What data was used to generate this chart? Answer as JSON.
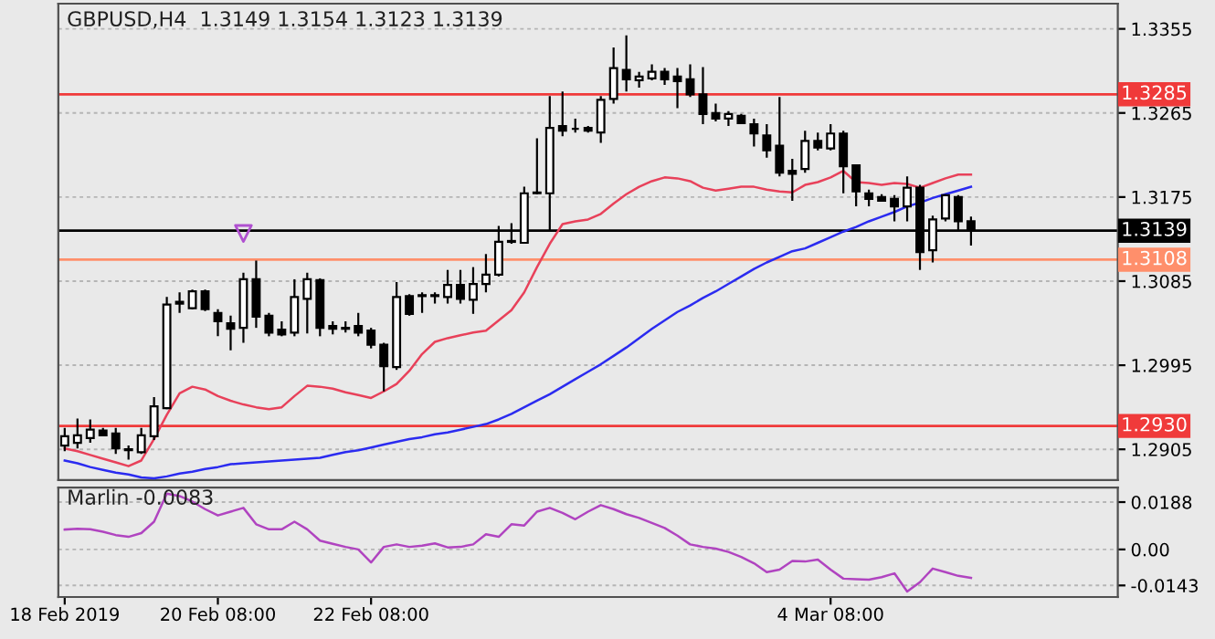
{
  "chart_data": [
    {
      "type": "candlestick",
      "title": "GBPUSD,H4  1.3149 1.3154 1.3123 1.3139",
      "categories": [
        null,
        null,
        null,
        null,
        null,
        null,
        null,
        null,
        null,
        null,
        null,
        null,
        null,
        null,
        null,
        null,
        null,
        null,
        null,
        null,
        null,
        null,
        null,
        null,
        null,
        null,
        null,
        null,
        null,
        null,
        null,
        null,
        null,
        null,
        null,
        null,
        null,
        null,
        null,
        null,
        null,
        null,
        null,
        null,
        null,
        null,
        null,
        null,
        null,
        null,
        null,
        null,
        null,
        null,
        null,
        null,
        null,
        null,
        null,
        null,
        null,
        null,
        null,
        null,
        null,
        null,
        null,
        null,
        null,
        null,
        null,
        null,
        null,
        null,
        null,
        null,
        null,
        null,
        null,
        null,
        null,
        null,
        null
      ],
      "ohlc": [
        [
          1.2909,
          1.2928,
          1.2903,
          1.2919
        ],
        [
          1.2912,
          1.2938,
          1.2906,
          1.292
        ],
        [
          1.2917,
          1.2937,
          1.2912,
          1.2926
        ],
        [
          1.2925,
          1.2928,
          1.2919,
          1.292
        ],
        [
          1.2922,
          1.2928,
          1.29,
          1.2906
        ],
        [
          1.2905,
          1.2909,
          1.2894,
          1.2904
        ],
        [
          1.2902,
          1.2928,
          1.29,
          1.292
        ],
        [
          1.2919,
          1.2961,
          1.2915,
          1.2951
        ],
        [
          1.2949,
          1.3068,
          1.2948,
          1.306
        ],
        [
          1.3061,
          1.3073,
          1.3051,
          1.3063
        ],
        [
          1.3056,
          1.3076,
          1.3055,
          1.3074
        ],
        [
          1.3074,
          1.3076,
          1.3053,
          1.3055
        ],
        [
          1.3051,
          1.3055,
          1.3026,
          1.3042
        ],
        [
          1.304,
          1.3048,
          1.3011,
          1.3034
        ],
        [
          1.3035,
          1.3094,
          1.3019,
          1.3087
        ],
        [
          1.3087,
          1.3107,
          1.3035,
          1.3047
        ],
        [
          1.3048,
          1.3051,
          1.3026,
          1.303
        ],
        [
          1.3033,
          1.3042,
          1.3026,
          1.3028
        ],
        [
          1.303,
          1.3087,
          1.3026,
          1.3068
        ],
        [
          1.3066,
          1.3094,
          1.3029,
          1.3087
        ],
        [
          1.3086,
          1.3088,
          1.3026,
          1.3035
        ],
        [
          1.3037,
          1.3042,
          1.3028,
          1.3034
        ],
        [
          1.3035,
          1.3042,
          1.303,
          1.3034
        ],
        [
          1.3037,
          1.3051,
          1.3026,
          1.303
        ],
        [
          1.3032,
          1.3035,
          1.3013,
          1.3017
        ],
        [
          1.3017,
          1.3019,
          1.2967,
          1.2994
        ],
        [
          1.2993,
          1.3084,
          1.299,
          1.3068
        ],
        [
          1.3069,
          1.3071,
          1.3048,
          1.305
        ],
        [
          1.3069,
          1.3073,
          1.3051,
          1.307
        ],
        [
          1.307,
          1.3073,
          1.3061,
          1.3069
        ],
        [
          1.3068,
          1.3097,
          1.3061,
          1.3081
        ],
        [
          1.3081,
          1.3097,
          1.3061,
          1.3066
        ],
        [
          1.3065,
          1.31,
          1.305,
          1.3082
        ],
        [
          1.3082,
          1.3114,
          1.3073,
          1.3092
        ],
        [
          1.3092,
          1.3144,
          1.309,
          1.3127
        ],
        [
          1.3127,
          1.3147,
          1.3125,
          1.3128
        ],
        [
          1.3126,
          1.3186,
          1.3125,
          1.3179
        ],
        [
          1.3179,
          1.3238,
          1.3178,
          1.318
        ],
        [
          1.3179,
          1.3283,
          1.3139,
          1.3249
        ],
        [
          1.3251,
          1.3288,
          1.324,
          1.3246
        ],
        [
          1.3248,
          1.3259,
          1.3244,
          1.3248
        ],
        [
          1.3249,
          1.3251,
          1.3244,
          1.3246
        ],
        [
          1.3244,
          1.3283,
          1.3233,
          1.3279
        ],
        [
          1.328,
          1.3335,
          1.3275,
          1.3313
        ],
        [
          1.3311,
          1.3348,
          1.3288,
          1.3301
        ],
        [
          1.33,
          1.3309,
          1.3292,
          1.3304
        ],
        [
          1.3302,
          1.3317,
          1.33,
          1.3309
        ],
        [
          1.3309,
          1.3313,
          1.3295,
          1.3301
        ],
        [
          1.3304,
          1.3313,
          1.327,
          1.3299
        ],
        [
          1.3301,
          1.3317,
          1.3282,
          1.3285
        ],
        [
          1.3285,
          1.3314,
          1.3253,
          1.3264
        ],
        [
          1.3265,
          1.3275,
          1.3256,
          1.3259
        ],
        [
          1.3259,
          1.3267,
          1.3251,
          1.3264
        ],
        [
          1.3262,
          1.3264,
          1.3253,
          1.3254
        ],
        [
          1.3253,
          1.3259,
          1.3229,
          1.3243
        ],
        [
          1.3241,
          1.3253,
          1.3217,
          1.3225
        ],
        [
          1.323,
          1.3282,
          1.3197,
          1.3201
        ],
        [
          1.3203,
          1.3216,
          1.3171,
          1.32
        ],
        [
          1.3205,
          1.3246,
          1.3201,
          1.3235
        ],
        [
          1.3235,
          1.3244,
          1.3225,
          1.3228
        ],
        [
          1.3227,
          1.3253,
          1.3225,
          1.3243
        ],
        [
          1.3243,
          1.3246,
          1.3179,
          1.3208
        ],
        [
          1.3209,
          1.321,
          1.3165,
          1.3181
        ],
        [
          1.3179,
          1.3183,
          1.3165,
          1.3173
        ],
        [
          1.3175,
          1.3178,
          1.317,
          1.3171
        ],
        [
          1.3173,
          1.3177,
          1.3149,
          1.3165
        ],
        [
          1.3165,
          1.3197,
          1.3149,
          1.3185
        ],
        [
          1.3185,
          1.3188,
          1.3097,
          1.3116
        ],
        [
          1.3118,
          1.3155,
          1.3105,
          1.3151
        ],
        [
          1.3152,
          1.3178,
          1.3149,
          1.3177
        ],
        [
          1.3175,
          1.3177,
          1.3139,
          1.3149
        ],
        [
          1.3149,
          1.3154,
          1.3123,
          1.3139
        ],
        null,
        null,
        null,
        null,
        null,
        null,
        null,
        null,
        null,
        null,
        null
      ],
      "series": [
        {
          "type": "line",
          "color": "#e8415a",
          "values": [
            1.2906,
            1.2903,
            1.2899,
            1.2895,
            1.2891,
            1.2887,
            1.2893,
            1.2916,
            1.2942,
            1.2965,
            1.2972,
            1.2969,
            1.2962,
            1.2957,
            1.2953,
            1.295,
            1.2948,
            1.295,
            1.2962,
            1.2973,
            1.2972,
            1.297,
            1.2966,
            1.2963,
            1.296,
            1.2967,
            1.2975,
            1.2989,
            1.3007,
            1.302,
            1.3024,
            1.3027,
            1.303,
            1.3032,
            1.3043,
            1.3054,
            1.3073,
            1.31,
            1.3125,
            1.3146,
            1.3149,
            1.3151,
            1.3157,
            1.3168,
            1.3178,
            1.3186,
            1.3192,
            1.3196,
            1.3195,
            1.3192,
            1.3185,
            1.3182,
            1.3184,
            1.3186,
            1.3186,
            1.3183,
            1.3181,
            1.318,
            1.3188,
            1.3191,
            1.3196,
            1.3203,
            1.3191,
            1.319,
            1.3188,
            1.319,
            1.3189,
            1.3185,
            1.319,
            1.3195,
            1.3199,
            1.3199,
            null,
            null,
            null,
            null,
            null,
            null,
            null,
            null,
            null,
            null,
            null
          ]
        },
        {
          "type": "line",
          "color": "#2b2bf0",
          "values": [
            1.2893,
            1.289,
            1.2886,
            1.2883,
            1.288,
            1.2878,
            1.2875,
            1.2874,
            1.2876,
            1.2879,
            1.2881,
            1.2884,
            1.2886,
            1.2889,
            1.289,
            1.2891,
            1.2892,
            1.2893,
            1.2894,
            1.2895,
            1.2896,
            1.2899,
            1.2902,
            1.2904,
            1.2907,
            1.291,
            1.2913,
            1.2916,
            1.2918,
            1.2921,
            1.2923,
            1.2926,
            1.2929,
            1.2932,
            1.2937,
            1.2943,
            1.295,
            1.2957,
            1.2964,
            1.2972,
            1.298,
            1.2988,
            1.2996,
            1.3005,
            1.3014,
            1.3024,
            1.3034,
            1.3043,
            1.3052,
            1.3059,
            1.3067,
            1.3074,
            1.3082,
            1.309,
            1.3098,
            1.3105,
            1.3111,
            1.3117,
            1.312,
            1.3126,
            1.3132,
            1.3138,
            1.3143,
            1.3149,
            1.3154,
            1.3159,
            1.3165,
            1.3169,
            1.3174,
            1.3178,
            1.3182,
            1.3186,
            null,
            null,
            null,
            null,
            null,
            null,
            null,
            null,
            null,
            null,
            null
          ]
        },
        {
          "type": "scatter",
          "color": "#b050d0",
          "marker": "triangle",
          "values": [
            null,
            null,
            null,
            null,
            null,
            null,
            null,
            null,
            null,
            null,
            null,
            null,
            null,
            null,
            1.3136,
            null,
            null,
            null,
            null,
            null,
            null,
            null,
            null,
            null,
            null,
            null,
            null,
            null,
            null,
            null,
            null,
            null,
            null,
            null,
            null,
            null,
            null,
            null,
            null,
            null,
            null,
            null,
            null,
            null,
            null,
            null,
            null,
            null,
            null,
            null,
            null,
            null,
            null,
            null,
            null,
            null,
            null,
            null,
            null,
            null,
            null,
            null,
            null,
            null,
            null,
            null,
            null,
            null,
            null,
            null,
            null,
            null,
            null,
            null,
            null,
            null,
            null,
            null,
            null,
            null,
            null,
            null,
            null
          ]
        }
      ],
      "ref_lines": [
        {
          "axis": "y",
          "value": 1.3285,
          "label": "1.3285",
          "color": "#f03a3a"
        },
        {
          "axis": "y",
          "value": 1.3108,
          "label": "1.3108",
          "color": "#ff8f6b"
        },
        {
          "axis": "y",
          "value": 1.293,
          "label": "1.2930",
          "color": "#f03a3a"
        },
        {
          "axis": "y",
          "value": 1.3139,
          "label": "1.3139",
          "color": "#000000"
        }
      ],
      "ylim": [
        1.2872,
        1.3382
      ],
      "yticks": [
        1.2905,
        1.2995,
        1.3085,
        1.3175,
        1.3265,
        1.3355
      ],
      "grid": "y",
      "tick_labels": "y"
    },
    {
      "type": "line",
      "title": "Marlin -0.0083",
      "categories": [
        "18 Feb 2019",
        null,
        null,
        null,
        null,
        null,
        null,
        null,
        null,
        null,
        null,
        null,
        "20 Feb 08:00",
        null,
        null,
        null,
        null,
        null,
        null,
        null,
        null,
        null,
        null,
        null,
        "22 Feb 08:00",
        null,
        null,
        null,
        null,
        null,
        null,
        null,
        null,
        null,
        null,
        null,
        null,
        null,
        null,
        null,
        null,
        null,
        null,
        null,
        null,
        null,
        null,
        null,
        null,
        null,
        null,
        null,
        null,
        null,
        null,
        null,
        null,
        null,
        null,
        null,
        "4 Mar 08:00",
        null,
        null,
        null,
        null,
        null,
        null,
        null,
        null,
        null,
        null,
        null,
        null,
        null,
        null,
        null,
        null,
        null,
        null,
        null,
        null,
        null,
        null
      ],
      "series": [
        {
          "color": "#b044c0",
          "values": [
            0.0079,
            0.0082,
            0.008,
            0.007,
            0.0057,
            0.005,
            0.0065,
            0.011,
            0.0222,
            0.0212,
            0.019,
            0.016,
            0.0135,
            0.015,
            0.0165,
            0.01,
            0.008,
            0.008,
            0.011,
            0.008,
            0.0035,
            0.0022,
            0.001,
            0.0,
            -0.0052,
            0.001,
            0.002,
            0.001,
            0.0015,
            0.0024,
            0.0008,
            0.001,
            0.002,
            0.006,
            0.005,
            0.01,
            0.0095,
            0.015,
            0.0165,
            0.0145,
            0.012,
            0.015,
            0.0176,
            0.016,
            0.014,
            0.0125,
            0.0105,
            0.0085,
            0.0055,
            0.002,
            0.001,
            0.0003,
            -0.001,
            -0.003,
            -0.0055,
            -0.009,
            -0.008,
            -0.0046,
            -0.0048,
            -0.004,
            -0.008,
            -0.0116,
            -0.0118,
            -0.012,
            -0.011,
            -0.0095,
            -0.0167,
            -0.013,
            -0.0076,
            -0.009,
            -0.0105,
            -0.0113,
            null,
            null,
            null,
            null,
            null,
            null,
            null,
            null,
            null,
            null,
            null
          ]
        }
      ],
      "ylim": [
        -0.0189,
        0.0246
      ],
      "yticks": [
        -0.0143,
        {
          "value": 0,
          "label": "0.00"
        },
        0.0188
      ],
      "grid": "y"
    }
  ]
}
